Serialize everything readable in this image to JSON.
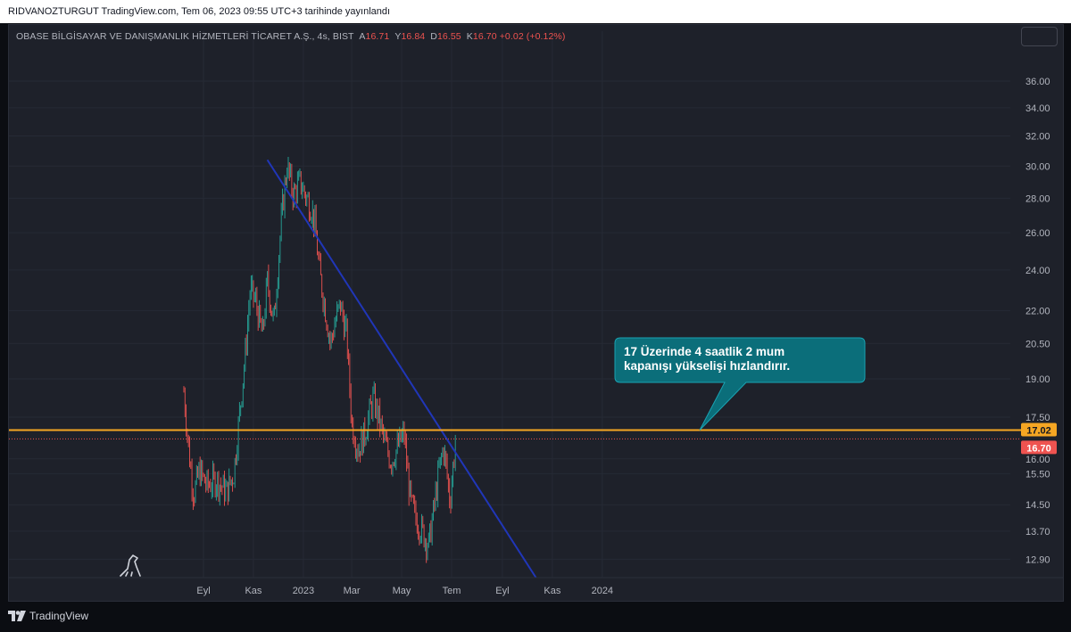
{
  "header": {
    "published_text": "RIDVANOZTURGUT TradingView.com, Tem 06, 2023 09:55 UTC+3 tarihinde yayınlandı"
  },
  "legend": {
    "symbol": "OBASE BİLGİSAYAR VE DANIŞMANLIK HİZMETLERİ TİCARET A.Ş., 4s, BIST",
    "open_label": "A",
    "open": "16.71",
    "high_label": "Y",
    "high": "16.84",
    "low_label": "D",
    "low": "16.55",
    "close_label": "K",
    "close": "16.70",
    "change": "+0.02 (+0.12%)"
  },
  "footer": {
    "brand": "TradingView"
  },
  "colors": {
    "up": "#26a69a",
    "down": "#ef5350",
    "trendline": "#2036b8",
    "level": "#f5a623",
    "callout": "#0b6e7a"
  },
  "chart_data": {
    "type": "candlestick",
    "scale": "log",
    "x_ticks": [
      "Eyl",
      "Kas",
      "2023",
      "Mar",
      "May",
      "Tem",
      "Eyl",
      "Kas",
      "2024"
    ],
    "y_ticks": [
      "36.00",
      "34.00",
      "32.00",
      "30.00",
      "28.00",
      "26.00",
      "24.00",
      "22.00",
      "20.50",
      "19.00",
      "17.50",
      "16.00",
      "15.50",
      "14.50",
      "13.70",
      "12.90"
    ],
    "ylim": [
      12.4,
      38.2
    ],
    "price_series_approx": [
      [
        "2022-08-08",
        18.5
      ],
      [
        "2022-08-14",
        16.3
      ],
      [
        "2022-08-20",
        14.8
      ],
      [
        "2022-08-27",
        15.6
      ],
      [
        "2022-09-05",
        15.1
      ],
      [
        "2022-09-17",
        15.3
      ],
      [
        "2022-09-29",
        14.9
      ],
      [
        "2022-10-08",
        15.5
      ],
      [
        "2022-10-14",
        17.3
      ],
      [
        "2022-10-22",
        20.0
      ],
      [
        "2022-10-28",
        23.0
      ],
      [
        "2022-11-04",
        22.4
      ],
      [
        "2022-11-12",
        20.8
      ],
      [
        "2022-11-18",
        23.4
      ],
      [
        "2022-11-26",
        21.4
      ],
      [
        "2022-12-02",
        24.8
      ],
      [
        "2022-12-06",
        27.2
      ],
      [
        "2022-12-12",
        30.0
      ],
      [
        "2022-12-20",
        28.2
      ],
      [
        "2022-12-28",
        29.0
      ],
      [
        "2023-01-05",
        28.0
      ],
      [
        "2023-01-11",
        27.4
      ],
      [
        "2023-01-15",
        26.4
      ],
      [
        "2023-01-21",
        23.8
      ],
      [
        "2023-01-28",
        22.0
      ],
      [
        "2023-02-03",
        20.5
      ],
      [
        "2023-02-09",
        21.5
      ],
      [
        "2023-02-15",
        22.3
      ],
      [
        "2023-02-23",
        20.8
      ],
      [
        "2023-03-01",
        17.3
      ],
      [
        "2023-03-09",
        16.3
      ],
      [
        "2023-03-17",
        16.9
      ],
      [
        "2023-03-27",
        18.2
      ],
      [
        "2023-04-02",
        17.6
      ],
      [
        "2023-04-10",
        16.6
      ],
      [
        "2023-04-18",
        15.9
      ],
      [
        "2023-04-26",
        16.4
      ],
      [
        "2023-05-04",
        16.9
      ],
      [
        "2023-05-08",
        15.6
      ],
      [
        "2023-05-12",
        14.6
      ],
      [
        "2023-05-18",
        14.1
      ],
      [
        "2023-05-24",
        13.8
      ],
      [
        "2023-05-30",
        13.5
      ],
      [
        "2023-06-03",
        13.3
      ],
      [
        "2023-06-09",
        14.3
      ],
      [
        "2023-06-15",
        15.5
      ],
      [
        "2023-06-21",
        16.4
      ],
      [
        "2023-06-25",
        15.6
      ],
      [
        "2023-06-29",
        14.6
      ],
      [
        "2023-07-03",
        15.8
      ],
      [
        "2023-07-06",
        16.7
      ]
    ],
    "trendline": {
      "start": [
        "2022-11-18",
        30.4
      ],
      "end": [
        "2023-10-12",
        12.4
      ]
    },
    "horizontal_level": 17.02,
    "last_price": 16.7,
    "price_labels": [
      "17.02",
      "16.70"
    ],
    "annotation": "17 Üzerinde 4 saatlik 2 mum kapanışı yükselişi hızlandırır.",
    "grid": true
  }
}
